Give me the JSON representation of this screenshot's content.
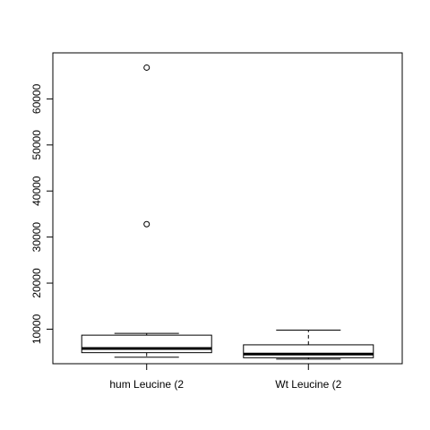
{
  "chart_data": {
    "type": "boxplot",
    "title": "",
    "xlabel": "",
    "ylabel": "",
    "ylim": [
      2500,
      70000
    ],
    "yticks": [
      10000,
      20000,
      30000,
      40000,
      50000,
      60000
    ],
    "ytick_labels": [
      "10000",
      "20000",
      "30000",
      "40000",
      "50000",
      "60000"
    ],
    "grid": false,
    "legend": "none",
    "groups": [
      {
        "label": "hum Leucine (2",
        "whisker_low": 3900,
        "q1": 4900,
        "median": 5800,
        "q3": 8700,
        "whisker_high": 9100,
        "outliers": [
          32800,
          66800
        ]
      },
      {
        "label": "Wt Leucine (2",
        "whisker_low": 3500,
        "q1": 3800,
        "median": 4600,
        "q3": 6600,
        "whisker_high": 9800,
        "outliers": []
      }
    ]
  }
}
